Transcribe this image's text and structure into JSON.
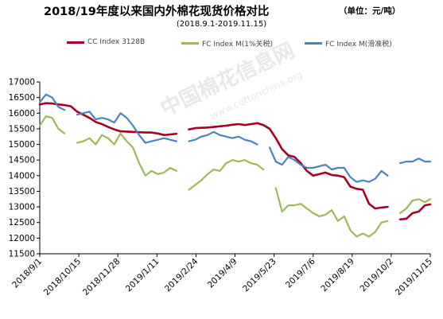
{
  "title": "2018/19年度以来国内外棉花现货价格对比",
  "unit": "（单位：元/吨）",
  "subtitle": "(2018.9.1-2019.11.15)",
  "watermark": "中国棉花信息网",
  "watermark_sub": "www.cottonchina.org",
  "colors": {
    "cc_index": "#a50021",
    "fc_1pct": "#9bbb59",
    "fc_sliding": "#4f81bd",
    "axis": "#000000"
  },
  "chart_data": {
    "type": "line",
    "title": "2018/19年度以来国内外棉花现货价格对比",
    "subtitle": "(2018.9.1-2019.11.15)",
    "xlabel": "",
    "ylabel": "",
    "ylim": [
      11500,
      17000
    ],
    "yticks": [
      11500,
      12000,
      12500,
      13000,
      13500,
      14000,
      14500,
      15000,
      15500,
      16000,
      16500,
      17000
    ],
    "x_ticks": [
      "2018/9/1",
      "2018/10/15",
      "2018/11/28",
      "2019/1/11",
      "2019/2/24",
      "2019/4/9",
      "2019/5/23",
      "2019/7/6",
      "2019/8/19",
      "2019/10/2",
      "2019/11/15"
    ],
    "legend_position": "top",
    "grid": false,
    "series": [
      {
        "name": "CC Index 3128B",
        "color": "#a50021",
        "points": [
          [
            "2018/9/1",
            16280
          ],
          [
            "2018/9/8",
            16320
          ],
          [
            "2018/9/15",
            16310
          ],
          [
            "2018/9/22",
            16280
          ],
          [
            "2018/9/29",
            16260
          ],
          [
            "2018/10/6",
            16220
          ],
          [
            "2018/10/13",
            16050
          ],
          [
            "2018/10/20",
            15950
          ],
          [
            "2018/10/27",
            15850
          ],
          [
            "2018/11/3",
            15720
          ],
          [
            "2018/11/10",
            15650
          ],
          [
            "2018/11/17",
            15560
          ],
          [
            "2018/11/24",
            15480
          ],
          [
            "2018/12/1",
            15420
          ],
          [
            "2018/12/8",
            15410
          ],
          [
            "2018/12/15",
            15400
          ],
          [
            "2018/12/22",
            15390
          ],
          [
            "2018/12/29",
            15380
          ],
          [
            "2019/1/5",
            15380
          ],
          [
            "2019/1/12",
            15350
          ],
          [
            "2019/1/19",
            15300
          ],
          [
            "2019/1/26",
            15320
          ],
          [
            "2019/2/2",
            15340
          ],
          [
            "2019/2/9",
            null
          ],
          [
            "2019/2/16",
            15480
          ],
          [
            "2019/2/23",
            15520
          ],
          [
            "2019/3/2",
            15530
          ],
          [
            "2019/3/9",
            15540
          ],
          [
            "2019/3/16",
            15560
          ],
          [
            "2019/3/23",
            15580
          ],
          [
            "2019/3/30",
            15600
          ],
          [
            "2019/4/6",
            15630
          ],
          [
            "2019/4/13",
            15650
          ],
          [
            "2019/4/20",
            15620
          ],
          [
            "2019/4/27",
            15650
          ],
          [
            "2019/5/4",
            15680
          ],
          [
            "2019/5/11",
            15620
          ],
          [
            "2019/5/18",
            15500
          ],
          [
            "2019/5/25",
            15200
          ],
          [
            "2019/6/1",
            14850
          ],
          [
            "2019/6/8",
            14650
          ],
          [
            "2019/6/15",
            14600
          ],
          [
            "2019/6/22",
            14400
          ],
          [
            "2019/6/29",
            14150
          ],
          [
            "2019/7/6",
            14000
          ],
          [
            "2019/7/13",
            14050
          ],
          [
            "2019/7/20",
            14100
          ],
          [
            "2019/7/27",
            14020
          ],
          [
            "2019/8/3",
            14000
          ],
          [
            "2019/8/10",
            13950
          ],
          [
            "2019/8/17",
            13650
          ],
          [
            "2019/8/24",
            13580
          ],
          [
            "2019/8/31",
            13550
          ],
          [
            "2019/9/7",
            13100
          ],
          [
            "2019/9/14",
            12950
          ],
          [
            "2019/9/21",
            12980
          ],
          [
            "2019/9/28",
            13000
          ],
          [
            "2019/10/5",
            null
          ],
          [
            "2019/10/12",
            12600
          ],
          [
            "2019/10/19",
            12620
          ],
          [
            "2019/10/26",
            12800
          ],
          [
            "2019/11/2",
            12850
          ],
          [
            "2019/11/9",
            13050
          ],
          [
            "2019/11/15",
            13080
          ]
        ]
      },
      {
        "name": "FC Index M(1%关税)",
        "color": "#9bbb59",
        "points": [
          [
            "2018/9/1",
            15600
          ],
          [
            "2018/9/8",
            15900
          ],
          [
            "2018/9/15",
            15850
          ],
          [
            "2018/9/22",
            15500
          ],
          [
            "2018/9/29",
            15350
          ],
          [
            "2018/10/6",
            null
          ],
          [
            "2018/10/13",
            15050
          ],
          [
            "2018/10/20",
            15100
          ],
          [
            "2018/10/27",
            15200
          ],
          [
            "2018/11/3",
            15000
          ],
          [
            "2018/11/10",
            15300
          ],
          [
            "2018/11/17",
            15200
          ],
          [
            "2018/11/24",
            15000
          ],
          [
            "2018/12/1",
            15350
          ],
          [
            "2018/12/8",
            15100
          ],
          [
            "2018/12/15",
            14900
          ],
          [
            "2018/12/22",
            14400
          ],
          [
            "2018/12/29",
            14000
          ],
          [
            "2019/1/5",
            14150
          ],
          [
            "2019/1/12",
            14050
          ],
          [
            "2019/1/19",
            14100
          ],
          [
            "2019/1/26",
            14250
          ],
          [
            "2019/2/2",
            14150
          ],
          [
            "2019/2/9",
            null
          ],
          [
            "2019/2/16",
            13550
          ],
          [
            "2019/2/23",
            13700
          ],
          [
            "2019/3/2",
            13850
          ],
          [
            "2019/3/9",
            14050
          ],
          [
            "2019/3/16",
            14200
          ],
          [
            "2019/3/23",
            14150
          ],
          [
            "2019/3/30",
            14400
          ],
          [
            "2019/4/6",
            14500
          ],
          [
            "2019/4/13",
            14450
          ],
          [
            "2019/4/20",
            14500
          ],
          [
            "2019/4/27",
            14400
          ],
          [
            "2019/5/4",
            14350
          ],
          [
            "2019/5/11",
            14200
          ],
          [
            "2019/5/18",
            null
          ],
          [
            "2019/5/25",
            13600
          ],
          [
            "2019/6/1",
            12850
          ],
          [
            "2019/6/8",
            13050
          ],
          [
            "2019/6/15",
            13050
          ],
          [
            "2019/6/22",
            13100
          ],
          [
            "2019/6/29",
            12950
          ],
          [
            "2019/7/6",
            12800
          ],
          [
            "2019/7/13",
            12700
          ],
          [
            "2019/7/20",
            12750
          ],
          [
            "2019/7/27",
            12900
          ],
          [
            "2019/8/3",
            12550
          ],
          [
            "2019/8/10",
            12700
          ],
          [
            "2019/8/17",
            12250
          ],
          [
            "2019/8/24",
            12050
          ],
          [
            "2019/8/31",
            12150
          ],
          [
            "2019/9/7",
            12050
          ],
          [
            "2019/9/14",
            12200
          ],
          [
            "2019/9/21",
            12500
          ],
          [
            "2019/9/28",
            12550
          ],
          [
            "2019/10/5",
            null
          ],
          [
            "2019/10/12",
            12800
          ],
          [
            "2019/10/19",
            12950
          ],
          [
            "2019/10/26",
            13200
          ],
          [
            "2019/11/2",
            13250
          ],
          [
            "2019/11/9",
            13150
          ],
          [
            "2019/11/15",
            13250
          ]
        ]
      },
      {
        "name": "FC Index M(滑准税)",
        "color": "#4f81bd",
        "points": [
          [
            "2018/9/1",
            16350
          ],
          [
            "2018/9/8",
            16600
          ],
          [
            "2018/9/15",
            16500
          ],
          [
            "2018/9/22",
            16200
          ],
          [
            "2018/9/29",
            16100
          ],
          [
            "2018/10/6",
            null
          ],
          [
            "2018/10/13",
            15950
          ],
          [
            "2018/10/20",
            16000
          ],
          [
            "2018/10/27",
            16050
          ],
          [
            "2018/11/3",
            15800
          ],
          [
            "2018/11/10",
            15850
          ],
          [
            "2018/11/17",
            15800
          ],
          [
            "2018/11/24",
            15700
          ],
          [
            "2018/12/1",
            16000
          ],
          [
            "2018/12/8",
            15850
          ],
          [
            "2018/12/15",
            15600
          ],
          [
            "2018/12/22",
            15300
          ],
          [
            "2018/12/29",
            15050
          ],
          [
            "2019/1/5",
            15100
          ],
          [
            "2019/1/12",
            15150
          ],
          [
            "2019/1/19",
            15200
          ],
          [
            "2019/1/26",
            15150
          ],
          [
            "2019/2/2",
            15100
          ],
          [
            "2019/2/9",
            null
          ],
          [
            "2019/2/16",
            15100
          ],
          [
            "2019/2/23",
            15150
          ],
          [
            "2019/3/2",
            15250
          ],
          [
            "2019/3/9",
            15300
          ],
          [
            "2019/3/16",
            15400
          ],
          [
            "2019/3/23",
            15300
          ],
          [
            "2019/3/30",
            15250
          ],
          [
            "2019/4/6",
            15200
          ],
          [
            "2019/4/13",
            15250
          ],
          [
            "2019/4/20",
            15150
          ],
          [
            "2019/4/27",
            15100
          ],
          [
            "2019/5/4",
            15000
          ],
          [
            "2019/5/11",
            null
          ],
          [
            "2019/5/18",
            14900
          ],
          [
            "2019/5/25",
            14450
          ],
          [
            "2019/6/1",
            14350
          ],
          [
            "2019/6/8",
            14600
          ],
          [
            "2019/6/15",
            14500
          ],
          [
            "2019/6/22",
            14350
          ],
          [
            "2019/6/29",
            14250
          ],
          [
            "2019/7/6",
            14250
          ],
          [
            "2019/7/13",
            14300
          ],
          [
            "2019/7/20",
            14350
          ],
          [
            "2019/7/27",
            14200
          ],
          [
            "2019/8/3",
            14250
          ],
          [
            "2019/8/10",
            14250
          ],
          [
            "2019/8/17",
            13950
          ],
          [
            "2019/8/24",
            13800
          ],
          [
            "2019/8/31",
            13850
          ],
          [
            "2019/9/7",
            13800
          ],
          [
            "2019/9/14",
            13900
          ],
          [
            "2019/9/21",
            14150
          ],
          [
            "2019/9/28",
            14000
          ],
          [
            "2019/10/5",
            null
          ],
          [
            "2019/10/12",
            14400
          ],
          [
            "2019/10/19",
            14450
          ],
          [
            "2019/10/26",
            14450
          ],
          [
            "2019/11/2",
            14550
          ],
          [
            "2019/11/9",
            14450
          ],
          [
            "2019/11/15",
            14450
          ]
        ]
      }
    ]
  }
}
